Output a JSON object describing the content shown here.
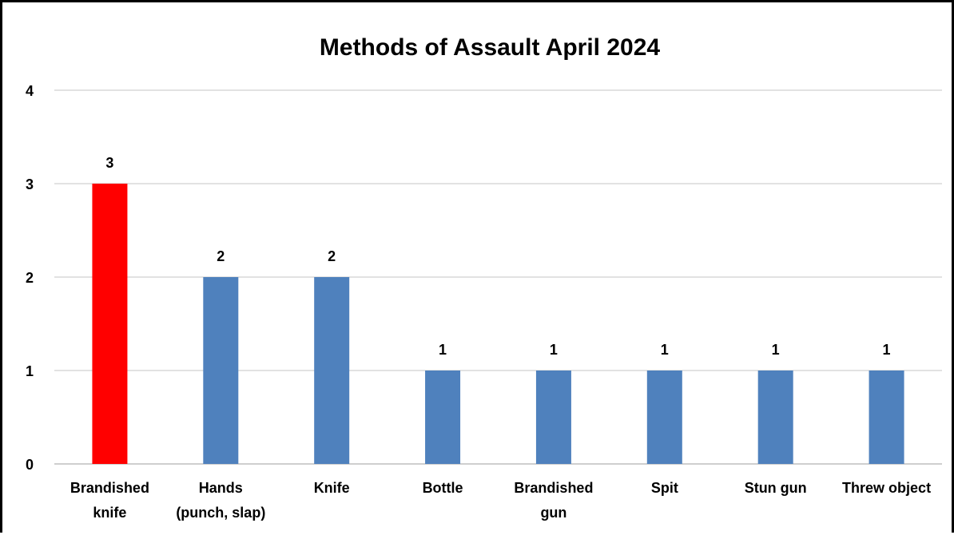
{
  "chart_data": {
    "type": "bar",
    "title": "Methods of Assault April 2024",
    "categories": [
      [
        "Brandished",
        "knife"
      ],
      [
        "Hands",
        "(punch, slap)"
      ],
      [
        "Knife"
      ],
      [
        "Bottle"
      ],
      [
        "Brandished",
        "gun"
      ],
      [
        "Spit"
      ],
      [
        "Stun gun"
      ],
      [
        "Threw object"
      ]
    ],
    "values": [
      3,
      2,
      2,
      1,
      1,
      1,
      1,
      1
    ],
    "data_labels": [
      "3",
      "2",
      "2",
      "1",
      "1",
      "1",
      "1",
      "1"
    ],
    "bar_colors": [
      "#ff0000",
      "#4f81bd",
      "#4f81bd",
      "#4f81bd",
      "#4f81bd",
      "#4f81bd",
      "#4f81bd",
      "#4f81bd"
    ],
    "y_ticks": [
      "0",
      "1",
      "2",
      "3",
      "4"
    ],
    "ylim": [
      0,
      4
    ],
    "xlabel": "",
    "ylabel": "",
    "grid": true,
    "legend": "none"
  }
}
